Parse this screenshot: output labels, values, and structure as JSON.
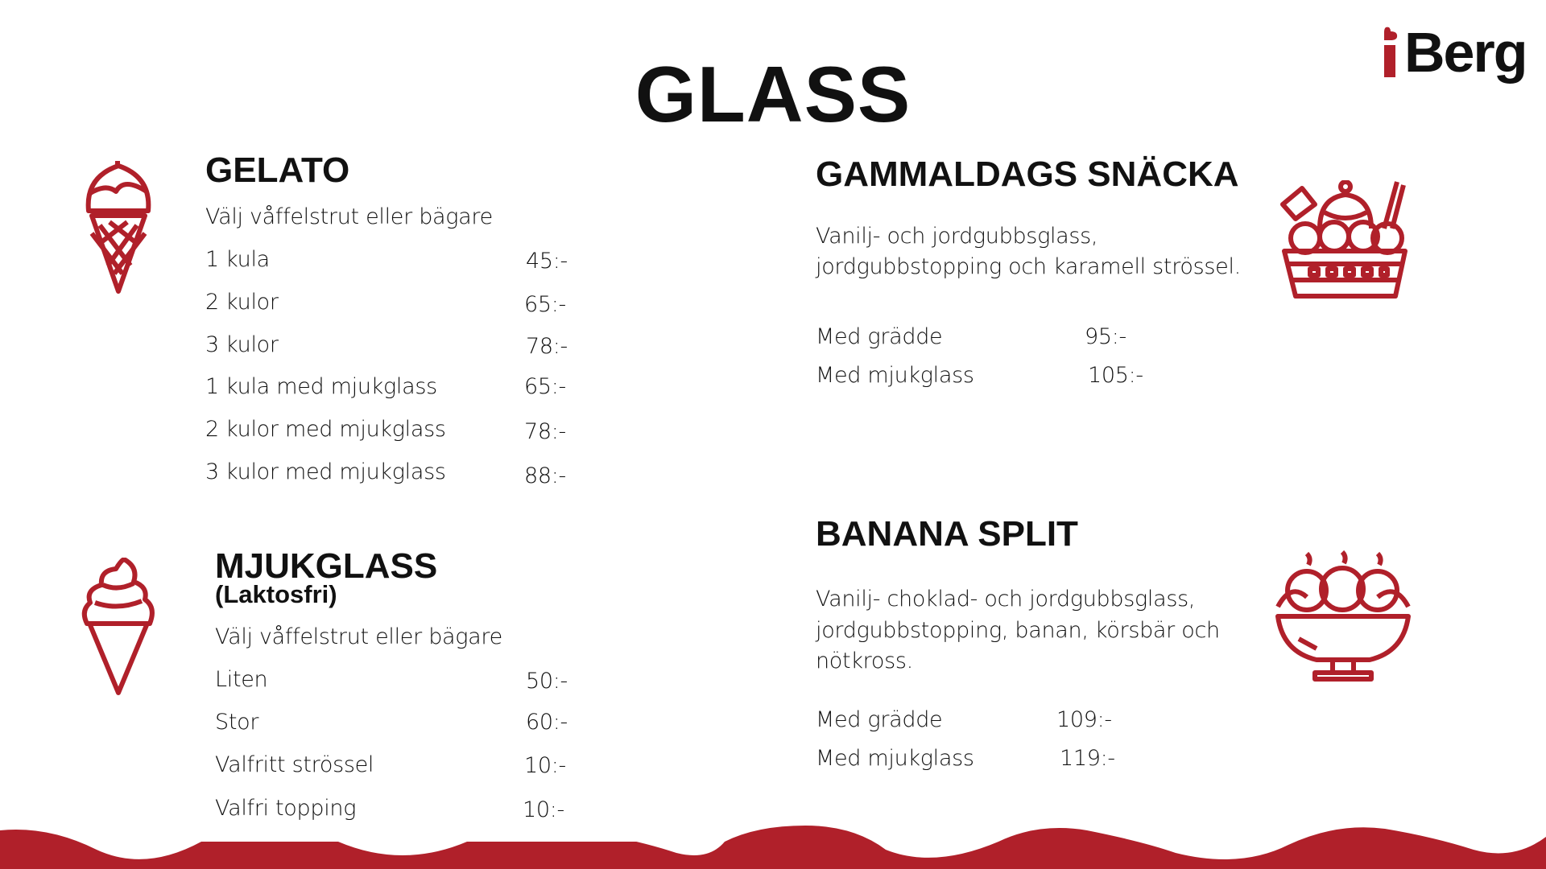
{
  "title": "GLASS",
  "logo": {
    "text": "iBerg",
    "accent_color": "#b0202a"
  },
  "colors": {
    "accent": "#b0202a",
    "text": "#111111"
  },
  "gelato": {
    "heading": "GELATO",
    "note": "Välj våffelstrut eller bägare",
    "icon": "ice-cream-cone-scoop-icon",
    "items": [
      {
        "name": "1 kula",
        "price": "45:-"
      },
      {
        "name": "2 kulor",
        "price": "65:-"
      },
      {
        "name": "3 kulor",
        "price": "78:-"
      },
      {
        "name": "1 kula med mjukglass",
        "price": "65:-"
      },
      {
        "name": "2 kulor med mjukglass",
        "price": "78:-"
      },
      {
        "name": "3 kulor med mjukglass",
        "price": "88:-"
      }
    ]
  },
  "mjukglass": {
    "heading": "MJUKGLASS",
    "subheading": "(Laktosfri)",
    "note": "Välj våffelstrut eller bägare",
    "icon": "soft-serve-cone-icon",
    "items": [
      {
        "name": "Liten",
        "price": "50:-"
      },
      {
        "name": "Stor",
        "price": "60:-"
      },
      {
        "name": "Valfritt strössel",
        "price": "10:-"
      },
      {
        "name": "Valfri topping",
        "price": "10:-"
      }
    ]
  },
  "gammaldags": {
    "heading": "GAMMALDAGS SNÄCKA",
    "description": [
      "Vanilj- och jordgubbsglass,",
      "jordgubbstopping och karamell strössel."
    ],
    "icon": "sundae-basket-icon",
    "items": [
      {
        "name": "Med grädde",
        "price": "95:-"
      },
      {
        "name": "Med mjukglass",
        "price": "105:-"
      }
    ]
  },
  "banana_split": {
    "heading": "BANANA SPLIT",
    "description": [
      "Vanilj- choklad- och  jordgubbsglass,",
      "jordgubbstopping, banan, körsbär och",
      "nötkross."
    ],
    "icon": "banana-split-bowl-icon",
    "items": [
      {
        "name": "Med grädde",
        "price": "109:-"
      },
      {
        "name": "Med mjukglass",
        "price": "119:-"
      }
    ]
  }
}
